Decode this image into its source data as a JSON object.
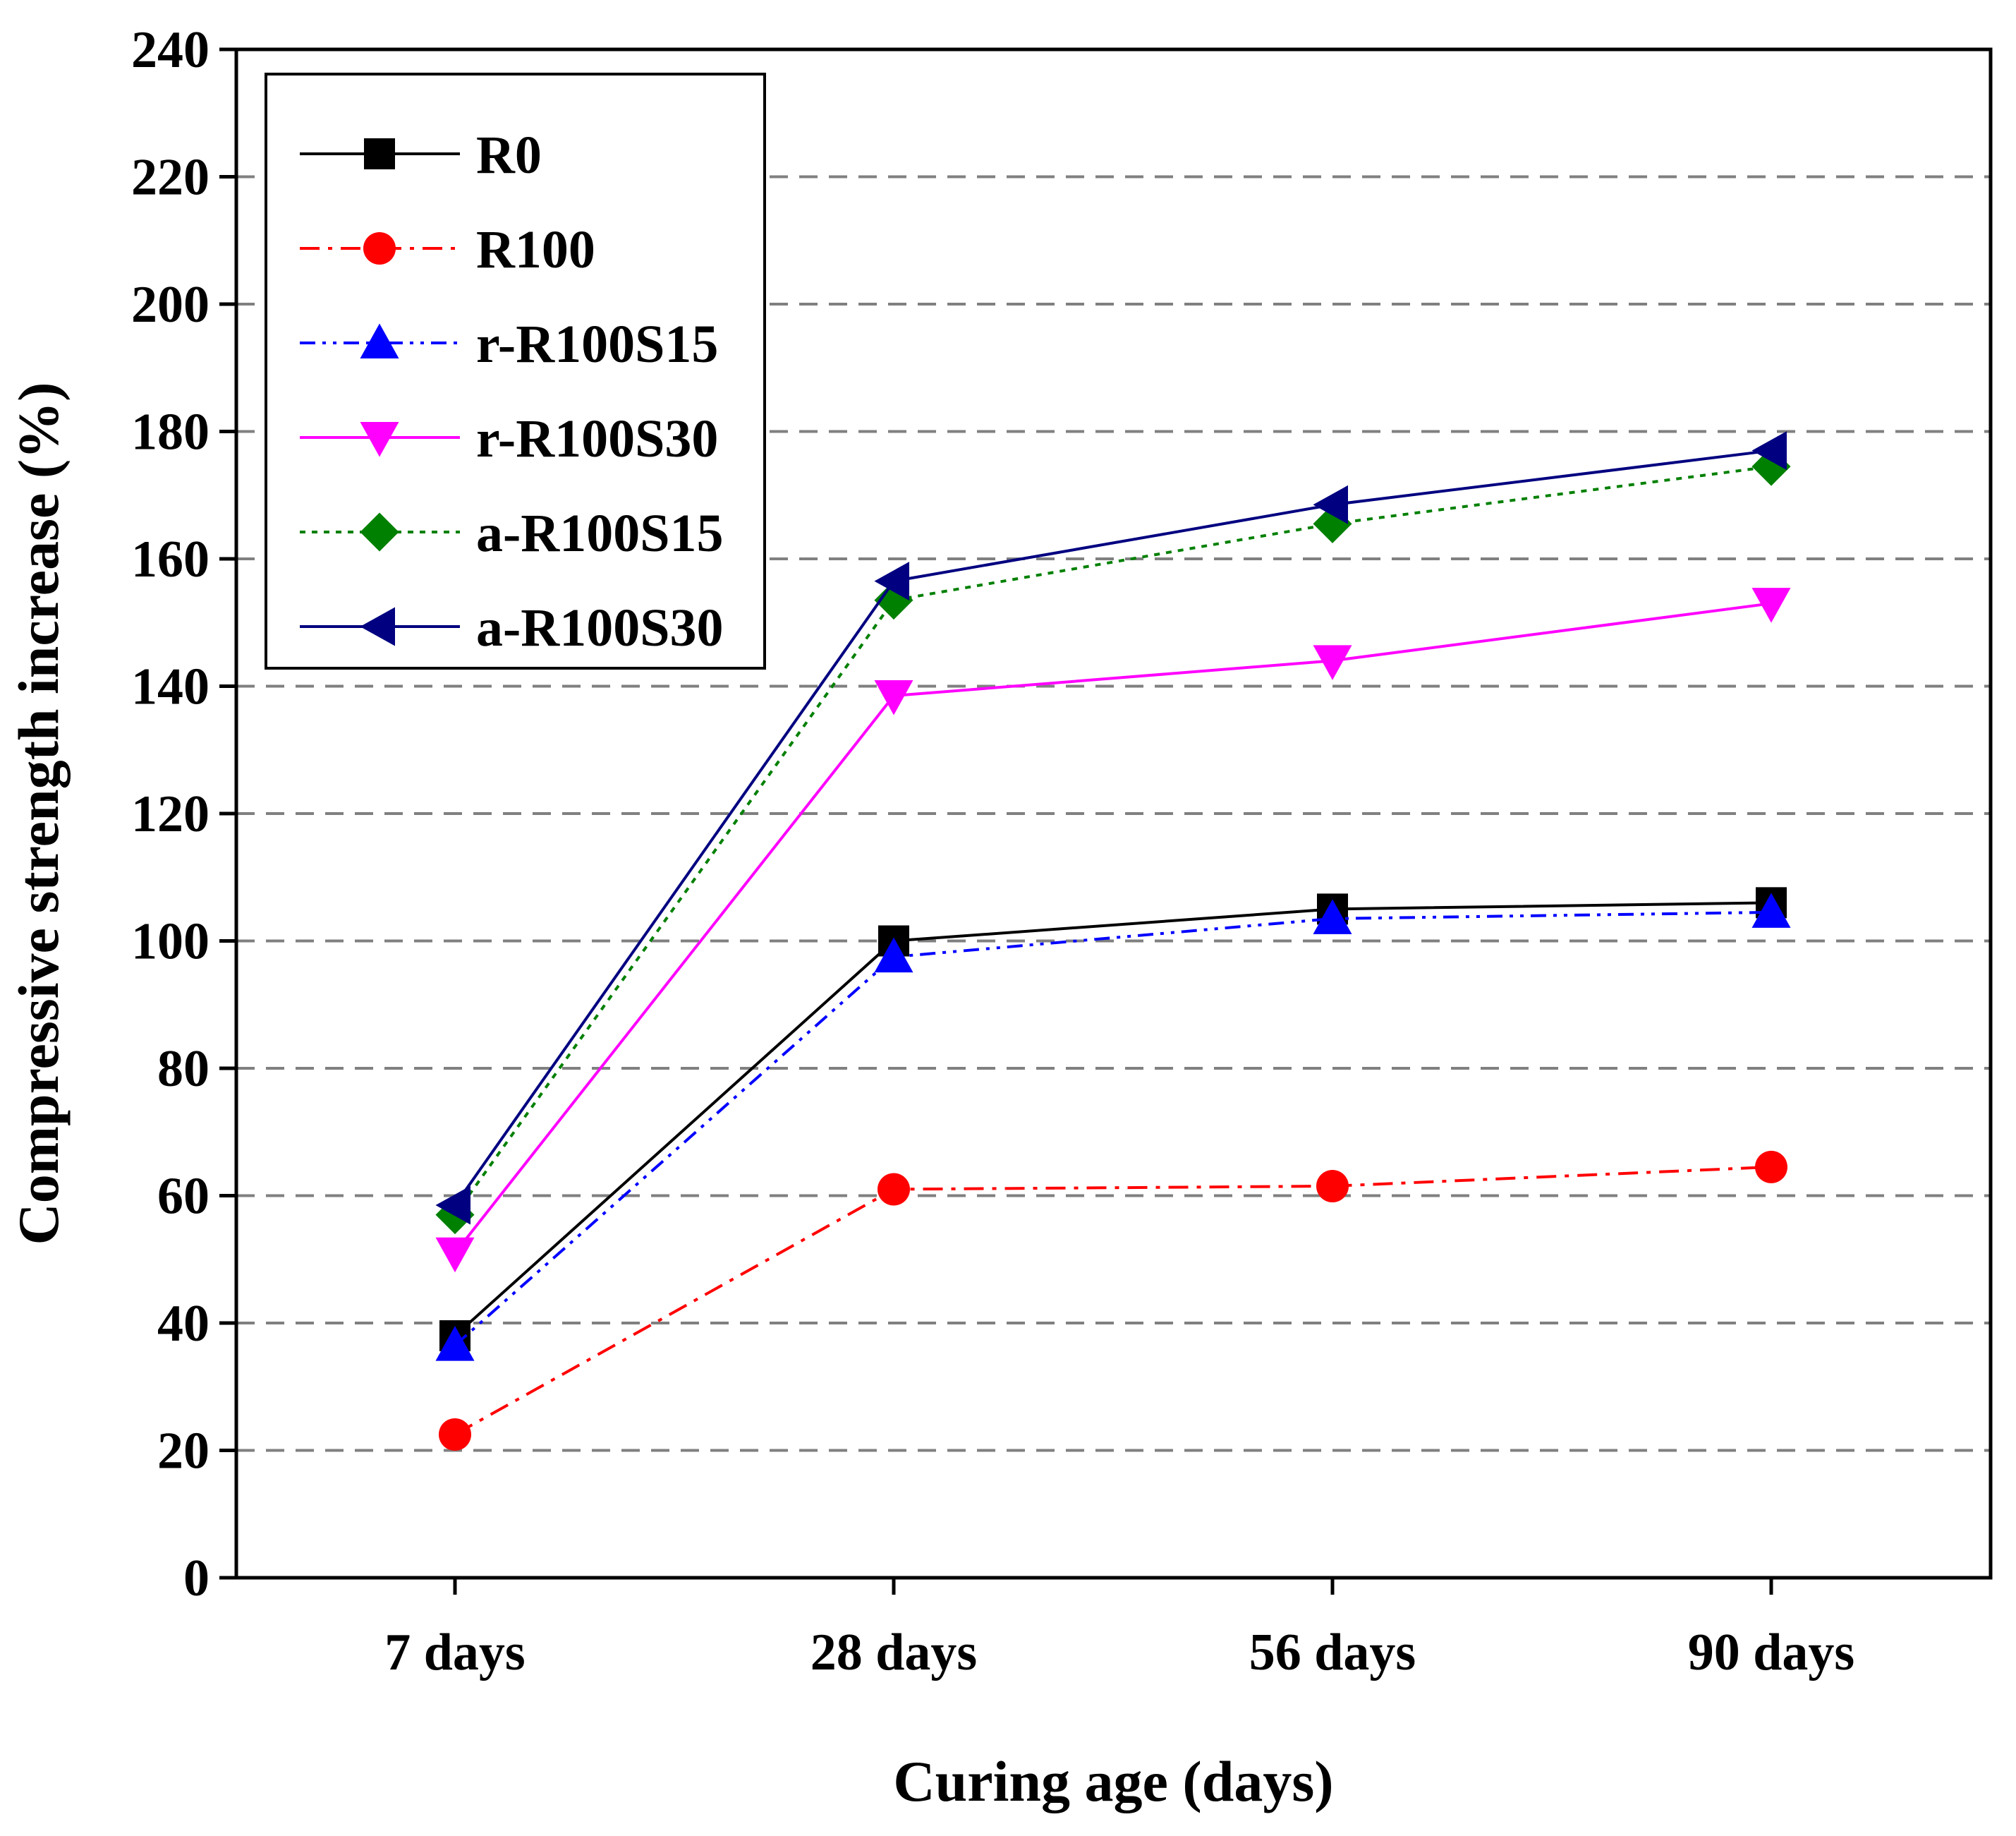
{
  "chart_data": {
    "type": "line",
    "xlabel": "Curing age (days)",
    "ylabel": "Compressive strength increase (%)",
    "categories": [
      "7 days",
      "28 days",
      "56 days",
      "90 days"
    ],
    "ylim": [
      0,
      240
    ],
    "yticks": [
      0,
      20,
      40,
      60,
      80,
      100,
      120,
      140,
      160,
      180,
      200,
      220,
      240
    ],
    "grid": {
      "horizontal": true,
      "style": "dashed"
    },
    "legend_position": "top-left",
    "series": [
      {
        "name": "R0",
        "values": [
          38,
          100,
          105,
          106
        ],
        "color": "#000000",
        "marker": "square",
        "dash": "solid"
      },
      {
        "name": "R100",
        "values": [
          22.5,
          61,
          61.5,
          64.5
        ],
        "color": "#ff0000",
        "marker": "circle",
        "dash": "dashdot"
      },
      {
        "name": "r-R100S15",
        "values": [
          36.5,
          97.5,
          103.5,
          104.5
        ],
        "color": "#0000ff",
        "marker": "triangle-up",
        "dash": "dashdotdot"
      },
      {
        "name": "r-R100S30",
        "values": [
          51,
          138.5,
          144,
          153
        ],
        "color": "#ff00ff",
        "marker": "triangle-down",
        "dash": "solid"
      },
      {
        "name": "a-R100S15",
        "values": [
          57,
          153.5,
          165.5,
          174.5
        ],
        "color": "#008000",
        "marker": "diamond",
        "dash": "dotted"
      },
      {
        "name": "a-R100S30",
        "values": [
          58.5,
          156.5,
          168.5,
          177
        ],
        "color": "#000080",
        "marker": "triangle-left",
        "dash": "solid"
      }
    ]
  }
}
